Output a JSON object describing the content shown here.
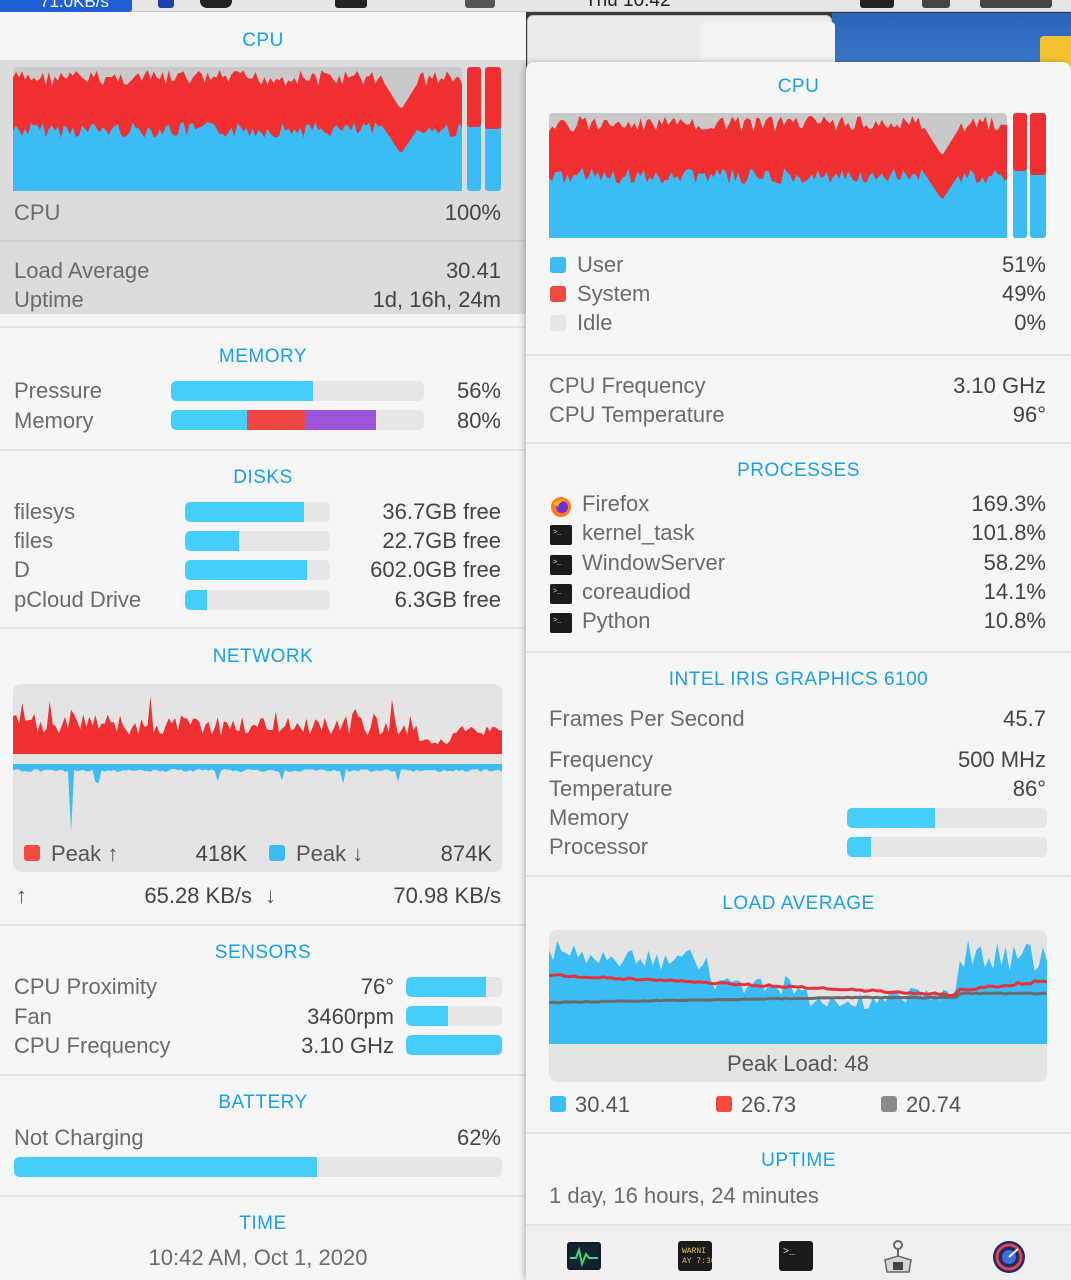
{
  "menubar": {
    "net_speed": "71.0KB/s",
    "clock": "Thu 10:42"
  },
  "left": {
    "cpu": {
      "header": "CPU",
      "label": "CPU",
      "value": "100%",
      "load_average_label": "Load Average",
      "load_average_value": "30.41",
      "uptime_label": "Uptime",
      "uptime_value": "1d, 16h, 24m"
    },
    "memory": {
      "header": "MEMORY",
      "pressure_label": "Pressure",
      "pressure_value": "56%",
      "pressure_fraction": 0.56,
      "memory_label": "Memory",
      "memory_value": "80%",
      "memory_segments": [
        {
          "fraction": 0.3,
          "color": "#46cdf9"
        },
        {
          "fraction": 0.23,
          "color": "#f04545"
        },
        {
          "fraction": 0.28,
          "color": "#9a55d8"
        }
      ]
    },
    "disks": {
      "header": "DISKS",
      "items": [
        {
          "name": "filesys",
          "free": "36.7GB free",
          "fraction": 0.82
        },
        {
          "name": "files",
          "free": "22.7GB free",
          "fraction": 0.37
        },
        {
          "name": "D",
          "free": "602.0GB free",
          "fraction": 0.84
        },
        {
          "name": "pCloud Drive",
          "free": "6.3GB free",
          "fraction": 0.15
        }
      ]
    },
    "network": {
      "header": "NETWORK",
      "peak_up_label": "Peak ↑",
      "peak_up_value": "418K",
      "peak_down_label": "Peak ↓",
      "peak_down_value": "874K",
      "up_arrow": "↑",
      "up_rate": "65.28 KB/s",
      "down_arrow": "↓",
      "down_rate": "70.98 KB/s"
    },
    "sensors": {
      "header": "SENSORS",
      "items": [
        {
          "name": "CPU Proximity",
          "value": "76°",
          "fraction": 0.83
        },
        {
          "name": "Fan",
          "value": "3460rpm",
          "fraction": 0.44
        },
        {
          "name": "CPU Frequency",
          "value": "3.10 GHz",
          "fraction": 1.0
        }
      ]
    },
    "battery": {
      "header": "BATTERY",
      "label": "Not Charging",
      "value": "62%",
      "fraction": 0.62
    },
    "time": {
      "header": "TIME",
      "value": "10:42 AM, Oct 1, 2020"
    }
  },
  "right": {
    "cpu": {
      "header": "CPU",
      "legend": [
        {
          "name": "User",
          "value": "51%",
          "color": "#3cbcf5"
        },
        {
          "name": "System",
          "value": "49%",
          "color": "#f04b3c"
        },
        {
          "name": "Idle",
          "value": "0%",
          "color": "#e6e6e6"
        }
      ],
      "freq_label": "CPU Frequency",
      "freq_value": "3.10 GHz",
      "temp_label": "CPU Temperature",
      "temp_value": "96°"
    },
    "processes": {
      "header": "PROCESSES",
      "items": [
        {
          "name": "Firefox",
          "value": "169.3%",
          "icon": "firefox-icon"
        },
        {
          "name": "kernel_task",
          "value": "101.8%",
          "icon": "terminal-icon"
        },
        {
          "name": "WindowServer",
          "value": "58.2%",
          "icon": "terminal-icon"
        },
        {
          "name": "coreaudiod",
          "value": "14.1%",
          "icon": "terminal-icon"
        },
        {
          "name": "Python",
          "value": "10.8%",
          "icon": "terminal-icon"
        }
      ]
    },
    "gpu": {
      "header": "INTEL IRIS GRAPHICS 6100",
      "fps_label": "Frames Per Second",
      "fps_value": "45.7",
      "freq_label": "Frequency",
      "freq_value": "500 MHz",
      "temp_label": "Temperature",
      "temp_value": "86°",
      "memory_label": "Memory",
      "memory_fraction": 0.44,
      "processor_label": "Processor",
      "processor_fraction": 0.12
    },
    "load": {
      "header": "LOAD AVERAGE",
      "peak_label": "Peak Load: 48",
      "legend": [
        {
          "value": "30.41",
          "color": "#3cbcf5"
        },
        {
          "value": "26.73",
          "color": "#f04b3c"
        },
        {
          "value": "20.74",
          "color": "#8a8a8a"
        }
      ]
    },
    "uptime": {
      "header": "UPTIME",
      "value": "1 day, 16 hours, 24 minutes"
    }
  },
  "dock": [
    "activity-monitor-icon",
    "console-icon",
    "terminal-icon",
    "system-information-icon",
    "istat-menus-icon"
  ]
}
